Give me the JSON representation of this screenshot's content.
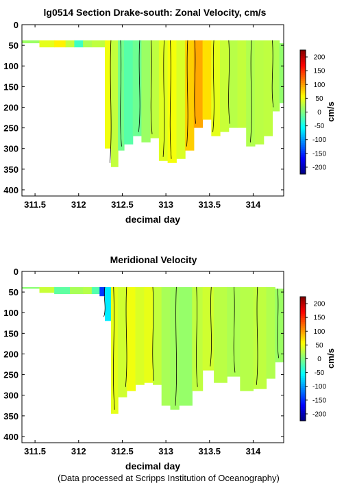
{
  "page": {
    "footer": "(Data processed at Scripps Institution of Oceanography)"
  },
  "chart_data": [
    {
      "type": "heatmap",
      "title": "lg0514 Section Drake-south: Zonal Velocity, cm/s",
      "xlabel": "decimal day",
      "ylabel": "",
      "x_ticks": [
        "311.5",
        "312",
        "312.5",
        "313",
        "313.5",
        "314"
      ],
      "y_ticks": [
        "0",
        "50",
        "100",
        "150",
        "200",
        "250",
        "300",
        "350",
        "400"
      ],
      "xlim": [
        311.35,
        314.35
      ],
      "ylim": [
        415,
        0
      ],
      "colorbar": {
        "label": "cm/s",
        "ticks": [
          "200",
          "150",
          "100",
          "50",
          "0",
          "-50",
          "-100",
          "-150",
          "-200"
        ],
        "range": [
          -225,
          225
        ]
      },
      "colors": {
        "negative_strong": "#00008f",
        "zero": "#2ff5c0",
        "positive_strong": "#ff3500"
      },
      "columns": [
        {
          "x0": 311.35,
          "x1": 311.55,
          "top": 38,
          "bottom": 45,
          "v": 12
        },
        {
          "x0": 311.55,
          "x1": 311.72,
          "top": 38,
          "bottom": 55,
          "v": 45
        },
        {
          "x0": 311.72,
          "x1": 311.85,
          "top": 38,
          "bottom": 55,
          "v": 62
        },
        {
          "x0": 311.85,
          "x1": 311.95,
          "top": 38,
          "bottom": 55,
          "v": 30
        },
        {
          "x0": 311.95,
          "x1": 312.05,
          "top": 38,
          "bottom": 55,
          "v": -30
        },
        {
          "x0": 312.05,
          "x1": 312.15,
          "top": 38,
          "bottom": 55,
          "v": 20
        },
        {
          "x0": 312.15,
          "x1": 312.3,
          "top": 38,
          "bottom": 55,
          "v": 28
        },
        {
          "x0": 312.3,
          "x1": 312.37,
          "top": 38,
          "bottom": 300,
          "v": 50
        },
        {
          "x0": 312.37,
          "x1": 312.45,
          "top": 38,
          "bottom": 345,
          "v": 30
        },
        {
          "x0": 312.45,
          "x1": 312.52,
          "top": 38,
          "bottom": 305,
          "v": -5
        },
        {
          "x0": 312.52,
          "x1": 312.62,
          "top": 38,
          "bottom": 290,
          "v": -18
        },
        {
          "x0": 312.62,
          "x1": 312.72,
          "top": 38,
          "bottom": 270,
          "v": -8
        },
        {
          "x0": 312.72,
          "x1": 312.82,
          "top": 38,
          "bottom": 285,
          "v": 12
        },
        {
          "x0": 312.82,
          "x1": 312.92,
          "top": 38,
          "bottom": 275,
          "v": 28
        },
        {
          "x0": 312.92,
          "x1": 313.02,
          "top": 38,
          "bottom": 330,
          "v": 42
        },
        {
          "x0": 313.02,
          "x1": 313.12,
          "top": 38,
          "bottom": 335,
          "v": 52
        },
        {
          "x0": 313.12,
          "x1": 313.22,
          "top": 38,
          "bottom": 325,
          "v": 40
        },
        {
          "x0": 313.22,
          "x1": 313.32,
          "top": 38,
          "bottom": 305,
          "v": 78
        },
        {
          "x0": 313.32,
          "x1": 313.42,
          "top": 38,
          "bottom": 250,
          "v": 95
        },
        {
          "x0": 313.42,
          "x1": 313.52,
          "top": 38,
          "bottom": 230,
          "v": 70
        },
        {
          "x0": 313.52,
          "x1": 313.62,
          "top": 38,
          "bottom": 270,
          "v": 45
        },
        {
          "x0": 313.62,
          "x1": 313.72,
          "top": 38,
          "bottom": 260,
          "v": 32
        },
        {
          "x0": 313.72,
          "x1": 313.82,
          "top": 38,
          "bottom": 250,
          "v": 25
        },
        {
          "x0": 313.82,
          "x1": 313.92,
          "top": 38,
          "bottom": 250,
          "v": 30
        },
        {
          "x0": 313.92,
          "x1": 314.02,
          "top": 38,
          "bottom": 295,
          "v": 22
        },
        {
          "x0": 314.02,
          "x1": 314.12,
          "top": 38,
          "bottom": 290,
          "v": 26
        },
        {
          "x0": 314.12,
          "x1": 314.22,
          "top": 38,
          "bottom": 270,
          "v": 28
        },
        {
          "x0": 314.22,
          "x1": 314.3,
          "top": 38,
          "bottom": 210,
          "v": 22
        },
        {
          "x0": 314.3,
          "x1": 314.35,
          "top": 45,
          "bottom": 190,
          "v": 8
        }
      ],
      "contours": [
        312.37,
        312.48,
        312.7,
        312.83,
        312.98,
        313.05,
        313.25,
        313.33,
        313.55,
        313.72,
        313.98,
        314.22
      ]
    },
    {
      "type": "heatmap",
      "title": "Meridional Velocity",
      "xlabel": "decimal day",
      "ylabel": "",
      "x_ticks": [
        "311.5",
        "312",
        "312.5",
        "313",
        "313.5",
        "314"
      ],
      "y_ticks": [
        "0",
        "50",
        "100",
        "150",
        "200",
        "250",
        "300",
        "350",
        "400"
      ],
      "xlim": [
        311.35,
        314.35
      ],
      "ylim": [
        415,
        0
      ],
      "colorbar": {
        "label": "cm/s",
        "ticks": [
          "200",
          "150",
          "100",
          "50",
          "0",
          "-50",
          "-100",
          "-150",
          "-200"
        ],
        "range": [
          -225,
          225
        ]
      },
      "colors": {
        "negative_strong": "#00008f",
        "zero": "#2ff5c0",
        "positive_strong": "#ff3500"
      },
      "columns": [
        {
          "x0": 311.35,
          "x1": 311.55,
          "top": 38,
          "bottom": 42,
          "v": 5
        },
        {
          "x0": 311.55,
          "x1": 311.72,
          "top": 38,
          "bottom": 52,
          "v": 32
        },
        {
          "x0": 311.72,
          "x1": 311.9,
          "top": 38,
          "bottom": 55,
          "v": -15
        },
        {
          "x0": 311.9,
          "x1": 312.05,
          "top": 38,
          "bottom": 55,
          "v": 18
        },
        {
          "x0": 312.05,
          "x1": 312.15,
          "top": 38,
          "bottom": 55,
          "v": 24
        },
        {
          "x0": 312.15,
          "x1": 312.24,
          "top": 38,
          "bottom": 55,
          "v": -20
        },
        {
          "x0": 312.24,
          "x1": 312.3,
          "top": 38,
          "bottom": 60,
          "v": -145
        },
        {
          "x0": 312.3,
          "x1": 312.37,
          "top": 38,
          "bottom": 120,
          "v": -65
        },
        {
          "x0": 312.37,
          "x1": 312.45,
          "top": 38,
          "bottom": 345,
          "v": 45
        },
        {
          "x0": 312.45,
          "x1": 312.55,
          "top": 38,
          "bottom": 305,
          "v": 35
        },
        {
          "x0": 312.55,
          "x1": 312.65,
          "top": 38,
          "bottom": 290,
          "v": 50
        },
        {
          "x0": 312.65,
          "x1": 312.75,
          "top": 38,
          "bottom": 275,
          "v": 40
        },
        {
          "x0": 312.75,
          "x1": 312.85,
          "top": 38,
          "bottom": 270,
          "v": 46
        },
        {
          "x0": 312.85,
          "x1": 312.95,
          "top": 38,
          "bottom": 275,
          "v": 30
        },
        {
          "x0": 312.95,
          "x1": 313.05,
          "top": 38,
          "bottom": 325,
          "v": 18
        },
        {
          "x0": 313.05,
          "x1": 313.15,
          "top": 38,
          "bottom": 335,
          "v": 14
        },
        {
          "x0": 313.15,
          "x1": 313.3,
          "top": 38,
          "bottom": 325,
          "v": 10
        },
        {
          "x0": 313.3,
          "x1": 313.42,
          "top": 38,
          "bottom": 290,
          "v": 28
        },
        {
          "x0": 313.42,
          "x1": 313.55,
          "top": 38,
          "bottom": 240,
          "v": 35
        },
        {
          "x0": 313.55,
          "x1": 313.7,
          "top": 38,
          "bottom": 270,
          "v": 26
        },
        {
          "x0": 313.7,
          "x1": 313.85,
          "top": 38,
          "bottom": 255,
          "v": 20
        },
        {
          "x0": 313.85,
          "x1": 314.0,
          "top": 38,
          "bottom": 290,
          "v": 24
        },
        {
          "x0": 314.0,
          "x1": 314.15,
          "top": 38,
          "bottom": 285,
          "v": 28
        },
        {
          "x0": 314.15,
          "x1": 314.25,
          "top": 38,
          "bottom": 260,
          "v": 22
        },
        {
          "x0": 314.25,
          "x1": 314.35,
          "top": 42,
          "bottom": 220,
          "v": 12
        }
      ],
      "contours": [
        312.3,
        312.4,
        312.55,
        312.85,
        313.12,
        313.35,
        313.52,
        313.78,
        314.05,
        314.28
      ]
    }
  ]
}
